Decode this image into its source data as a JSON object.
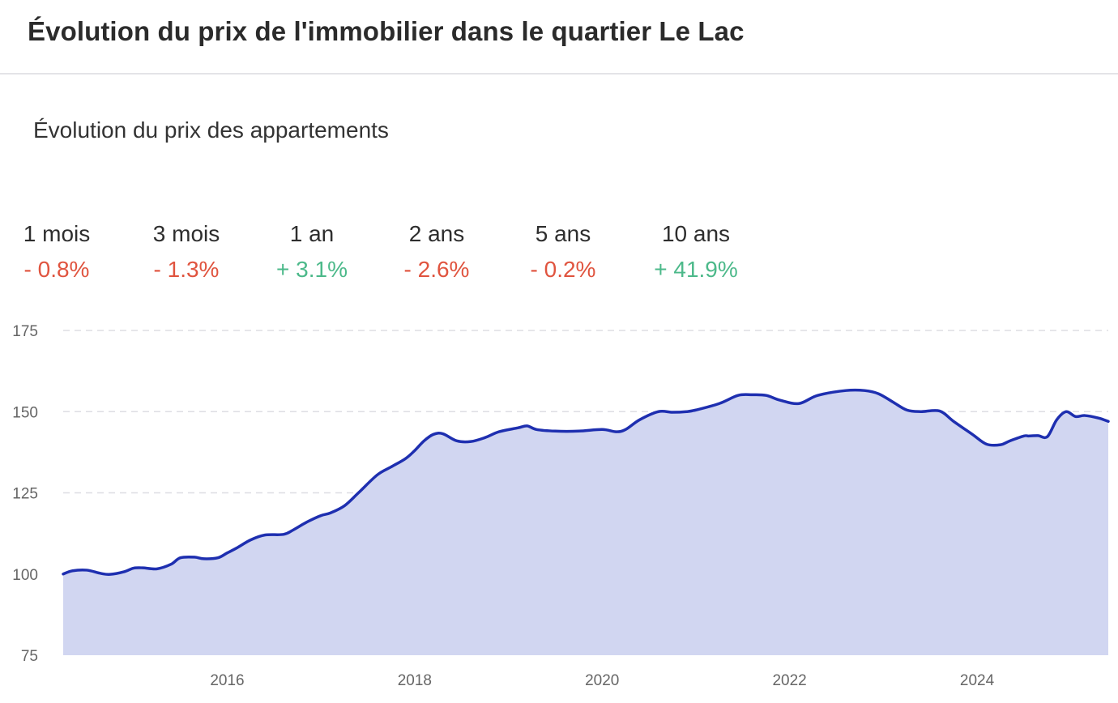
{
  "header": {
    "title": "Évolution du prix de l'immobilier dans le quartier Le Lac"
  },
  "subtitle": "Évolution du prix des appartements",
  "stats": [
    {
      "period": "1 mois",
      "change": "- 0.8%",
      "direction": "down"
    },
    {
      "period": "3 mois",
      "change": "- 1.3%",
      "direction": "down"
    },
    {
      "period": "1 an",
      "change": "+ 3.1%",
      "direction": "up"
    },
    {
      "period": "2 ans",
      "change": "- 2.6%",
      "direction": "down"
    },
    {
      "period": "5 ans",
      "change": "- 0.2%",
      "direction": "down"
    },
    {
      "period": "10 ans",
      "change": "+ 41.9%",
      "direction": "up"
    }
  ],
  "colors": {
    "down": "#e0543f",
    "up": "#4cb98a",
    "line": "#1e2fb0",
    "area": "#d1d6f1",
    "grid": "#dedee3"
  },
  "chart_data": {
    "type": "area",
    "title": "Évolution du prix des appartements",
    "xlabel": "",
    "ylabel": "",
    "xlim": [
      2014.25,
      2025.4
    ],
    "ylim": [
      75,
      175
    ],
    "y_ticks": [
      75,
      100,
      125,
      150,
      175
    ],
    "x_ticks": [
      2016,
      2018,
      2020,
      2022,
      2024
    ],
    "grid": true,
    "series": [
      {
        "x": [
          2014.25,
          2014.35,
          2014.5,
          2014.65,
          2014.75,
          2014.9,
          2015.0,
          2015.1,
          2015.25,
          2015.4,
          2015.5,
          2015.65,
          2015.75,
          2015.9,
          2016.0,
          2016.1,
          2016.25,
          2016.4,
          2016.6,
          2016.7,
          2016.85,
          2017.0,
          2017.1,
          2017.25,
          2017.4,
          2017.6,
          2017.75,
          2017.9,
          2018.0,
          2018.1,
          2018.2,
          2018.3,
          2018.45,
          2018.6,
          2018.75,
          2018.9,
          2019.1,
          2019.2,
          2019.3,
          2019.5,
          2019.75,
          2020.0,
          2020.15,
          2020.25,
          2020.4,
          2020.6,
          2020.75,
          2020.9,
          2021.0,
          2021.25,
          2021.45,
          2021.6,
          2021.75,
          2021.9,
          2022.1,
          2022.3,
          2022.6,
          2022.8,
          2022.95,
          2023.1,
          2023.25,
          2023.4,
          2023.6,
          2023.75,
          2023.95,
          2024.1,
          2024.25,
          2024.35,
          2024.5,
          2024.55,
          2024.65,
          2024.75,
          2024.85,
          2024.95,
          2025.05,
          2025.15,
          2025.3,
          2025.4
        ],
        "y": [
          100.0,
          101.0,
          101.2,
          100.2,
          99.9,
          100.7,
          101.8,
          101.9,
          101.6,
          103.0,
          105.0,
          105.2,
          104.7,
          105.0,
          106.5,
          108.0,
          110.5,
          112.0,
          112.2,
          113.5,
          116.0,
          118.0,
          118.8,
          121.0,
          125.0,
          130.5,
          133.0,
          135.5,
          138.0,
          141.0,
          143.0,
          143.2,
          141.0,
          140.8,
          142.0,
          143.8,
          145.0,
          145.6,
          144.5,
          144.0,
          144.0,
          144.5,
          143.8,
          144.5,
          147.5,
          150.0,
          149.8,
          150.0,
          150.5,
          152.5,
          155.0,
          155.2,
          155.0,
          153.5,
          152.5,
          155.0,
          156.5,
          156.5,
          155.5,
          153.0,
          150.5,
          150.0,
          150.2,
          147.0,
          143.0,
          140.0,
          139.8,
          141.0,
          142.5,
          142.5,
          142.6,
          142.3,
          147.5,
          150.0,
          148.5,
          148.8,
          148.0,
          147.0
        ]
      }
    ]
  }
}
